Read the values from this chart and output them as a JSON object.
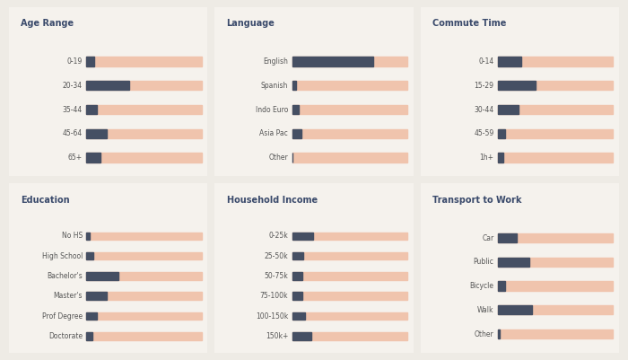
{
  "background_color": "#eeebe5",
  "card_color": "#f5f2ed",
  "bar_dark": "#454f63",
  "bar_light": "#f0c4ad",
  "title_color": "#3a4a6b",
  "label_color": "#555555",
  "panels": [
    {
      "title": "Age Range",
      "categories": [
        "0-19",
        "20-34",
        "35-44",
        "45-64",
        "65+"
      ],
      "values": [
        0.07,
        0.37,
        0.09,
        0.18,
        0.12
      ]
    },
    {
      "title": "Language",
      "categories": [
        "English",
        "Spanish",
        "Indo Euro",
        "Asia Pac",
        "Other"
      ],
      "values": [
        0.7,
        0.03,
        0.06,
        0.08,
        0.005
      ]
    },
    {
      "title": "Commute Time",
      "categories": [
        "0-14",
        "15-29",
        "30-44",
        "45-59",
        "1h+"
      ],
      "values": [
        0.2,
        0.33,
        0.18,
        0.06,
        0.05
      ]
    },
    {
      "title": "Education",
      "categories": [
        "No HS",
        "High School",
        "Bachelor's",
        "Master's",
        "Prof Degree",
        "Doctorate"
      ],
      "values": [
        0.03,
        0.06,
        0.28,
        0.18,
        0.09,
        0.05
      ]
    },
    {
      "title": "Household Income",
      "categories": [
        "0-25k",
        "25-50k",
        "50-75k",
        "75-100k",
        "100-150k",
        "150k+"
      ],
      "values": [
        0.18,
        0.1,
        0.09,
        0.09,
        0.11,
        0.17
      ]
    },
    {
      "title": "Transport to Work",
      "categories": [
        "Car",
        "Public",
        "Bicycle",
        "Walk",
        "Other"
      ],
      "values": [
        0.16,
        0.27,
        0.06,
        0.3,
        0.015
      ]
    }
  ]
}
